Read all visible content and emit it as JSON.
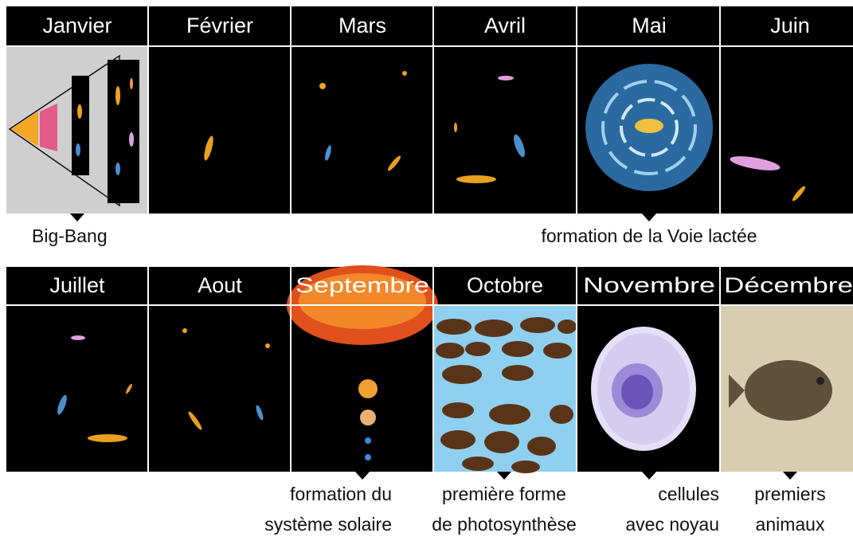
{
  "rows": [
    {
      "months": [
        "Janvier",
        "Février",
        "Mars",
        "Avril",
        "Mai",
        "Juin"
      ],
      "annotations": [
        {
          "lines": [
            "Big-Bang"
          ]
        },
        {
          "lines": [
            "formation de la Voie lactée"
          ]
        }
      ]
    },
    {
      "months": [
        "Juillet",
        "Aout",
        "Septembre",
        "Octobre",
        "Novembre",
        "Décembre"
      ],
      "annotations": [
        {
          "lines": [
            "formation du",
            "système solaire"
          ]
        },
        {
          "lines": [
            "première forme",
            "de photosynthèse"
          ]
        },
        {
          "lines": [
            "cellules",
            "avec noyau"
          ]
        },
        {
          "lines": [
            "premiers",
            "animaux"
          ]
        }
      ]
    }
  ]
}
